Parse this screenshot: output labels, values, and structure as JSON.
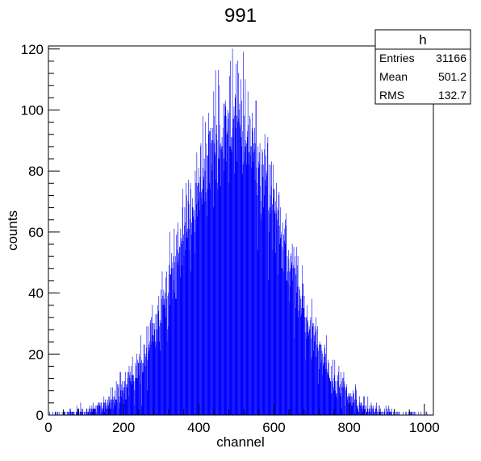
{
  "chart_data": {
    "type": "histogram",
    "title": "991",
    "xlabel": "channel",
    "ylabel": "counts",
    "xlim": [
      0,
      1024
    ],
    "ylim": [
      0,
      121
    ],
    "bin_width": 1,
    "xticks": [
      "0",
      "200",
      "400",
      "600",
      "800",
      "1000"
    ],
    "yticks": [
      "0",
      "20",
      "40",
      "60",
      "80",
      "100",
      "120"
    ],
    "fill_color": "#0000ff",
    "line_color": "#000099",
    "distribution": {
      "shape": "gaussian",
      "peak_channel": 490,
      "peak_counts": 95,
      "sigma": 132.7
    },
    "max_bin": {
      "channel": 499,
      "counts": 115
    },
    "stats_box": {
      "name": "h",
      "rows": [
        {
          "label": "Entries",
          "value": "31166"
        },
        {
          "label": "Mean",
          "value": "501.2"
        },
        {
          "label": "RMS",
          "value": "132.7"
        }
      ]
    }
  }
}
